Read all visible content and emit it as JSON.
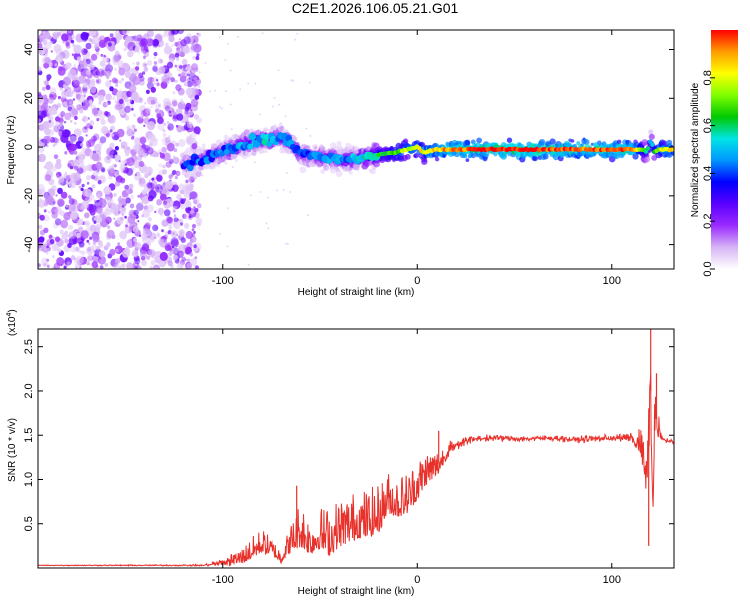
{
  "title": "C2E1.2026.106.05.21.G01",
  "chart_data": [
    {
      "type": "heatmap",
      "name": "spectrogram",
      "xlabel": "Height of straight line (km)",
      "ylabel": "Frequency (Hz)",
      "xlim": [
        -195,
        132
      ],
      "ylim": [
        -50,
        48
      ],
      "x_ticks": [
        "-100",
        "0",
        "100"
      ],
      "x_tick_values": [
        -100,
        0,
        100
      ],
      "y_ticks": [
        "-40",
        "-20",
        "0",
        "20",
        "40"
      ],
      "y_tick_values": [
        -40,
        -20,
        0,
        20,
        40
      ],
      "colorbar": {
        "label": "Normalized spectral amplitude",
        "range": [
          0,
          1
        ],
        "ticks": [
          "0.0",
          "0.2",
          "0.4",
          "0.6",
          "0.8"
        ],
        "tick_values": [
          0.0,
          0.2,
          0.4,
          0.6,
          0.8
        ],
        "colors": [
          "#ffffff",
          "#d6b4f5",
          "#9a2bff",
          "#5a00ff",
          "#0000ff",
          "#0096ff",
          "#00e5e5",
          "#00c800",
          "#7fff00",
          "#ffff00",
          "#ff9c00",
          "#ff0000"
        ]
      },
      "noise_region_x": [
        -195,
        -112
      ],
      "track": {
        "x": [
          -120,
          -110,
          -100,
          -90,
          -80,
          -70,
          -65,
          -60,
          -50,
          -40,
          -30,
          -20,
          -10,
          -5,
          0,
          3,
          10,
          20,
          40,
          60,
          80,
          90,
          100,
          110,
          115,
          118,
          120,
          122,
          125,
          132
        ],
        "f": [
          -7,
          -5,
          -2,
          1,
          3,
          4,
          2,
          -3,
          -4,
          -5,
          -5,
          -3,
          -2,
          -1,
          0,
          -2,
          -1,
          -1,
          -1,
          -1,
          -1,
          -1,
          -1,
          -1,
          -1,
          -2,
          3,
          -2,
          -1,
          -1
        ],
        "amp": [
          0.35,
          0.4,
          0.45,
          0.45,
          0.5,
          0.45,
          0.45,
          0.4,
          0.45,
          0.45,
          0.5,
          0.6,
          0.7,
          0.75,
          0.8,
          0.8,
          0.85,
          0.95,
          1.0,
          1.0,
          0.95,
          0.95,
          0.95,
          0.95,
          0.7,
          0.6,
          0.5,
          0.6,
          0.8,
          0.85
        ]
      }
    },
    {
      "type": "line",
      "name": "snr",
      "xlabel": "Height of straight line (km)",
      "ylabel": "SNR (10 * v/v)",
      "multiplier_label": "(x10",
      "multiplier_exp": "4",
      "multiplier_close": ")",
      "xlim": [
        -195,
        132
      ],
      "ylim": [
        0,
        2.7
      ],
      "x_ticks": [
        "-100",
        "0",
        "100"
      ],
      "x_tick_values": [
        -100,
        0,
        100
      ],
      "y_ticks": [
        "0.5",
        "1.0",
        "1.5",
        "2.0",
        "2.5"
      ],
      "y_tick_values": [
        0.5,
        1.0,
        1.5,
        2.0,
        2.5
      ],
      "color": "#e8312b",
      "x": [
        -195,
        -110,
        -100,
        -90,
        -80,
        -75,
        -70,
        -65,
        -60,
        -55,
        -50,
        -45,
        -40,
        -35,
        -30,
        -25,
        -20,
        -15,
        -10,
        -5,
        0,
        5,
        10,
        15,
        20,
        30,
        40,
        50,
        60,
        70,
        80,
        90,
        100,
        110,
        115,
        118,
        120,
        121,
        122,
        124,
        126,
        132
      ],
      "y": [
        0.03,
        0.03,
        0.06,
        0.12,
        0.28,
        0.22,
        0.12,
        0.3,
        0.45,
        0.3,
        0.4,
        0.35,
        0.45,
        0.5,
        0.55,
        0.55,
        0.6,
        0.8,
        0.75,
        0.8,
        0.95,
        1.1,
        1.15,
        1.3,
        1.4,
        1.46,
        1.47,
        1.46,
        1.46,
        1.47,
        1.45,
        1.46,
        1.47,
        1.47,
        1.4,
        1.0,
        2.0,
        0.7,
        1.8,
        1.6,
        1.45,
        1.42
      ],
      "noise": [
        0.005,
        0.01,
        0.06,
        0.12,
        0.18,
        0.12,
        0.1,
        0.2,
        0.35,
        0.25,
        0.3,
        0.35,
        0.35,
        0.35,
        0.35,
        0.35,
        0.35,
        0.3,
        0.3,
        0.3,
        0.3,
        0.25,
        0.2,
        0.12,
        0.08,
        0.04,
        0.04,
        0.04,
        0.04,
        0.04,
        0.04,
        0.05,
        0.05,
        0.06,
        0.2,
        0.3,
        0.5,
        0.5,
        0.4,
        0.2,
        0.04,
        0.03
      ],
      "spikes": [
        {
          "x": 120,
          "y": 2.75
        },
        {
          "x": 119,
          "y": 0.25
        },
        {
          "x": 123,
          "y": 2.2
        },
        {
          "x": 11,
          "y": 1.55
        },
        {
          "x": -62,
          "y": 0.93
        }
      ]
    }
  ]
}
